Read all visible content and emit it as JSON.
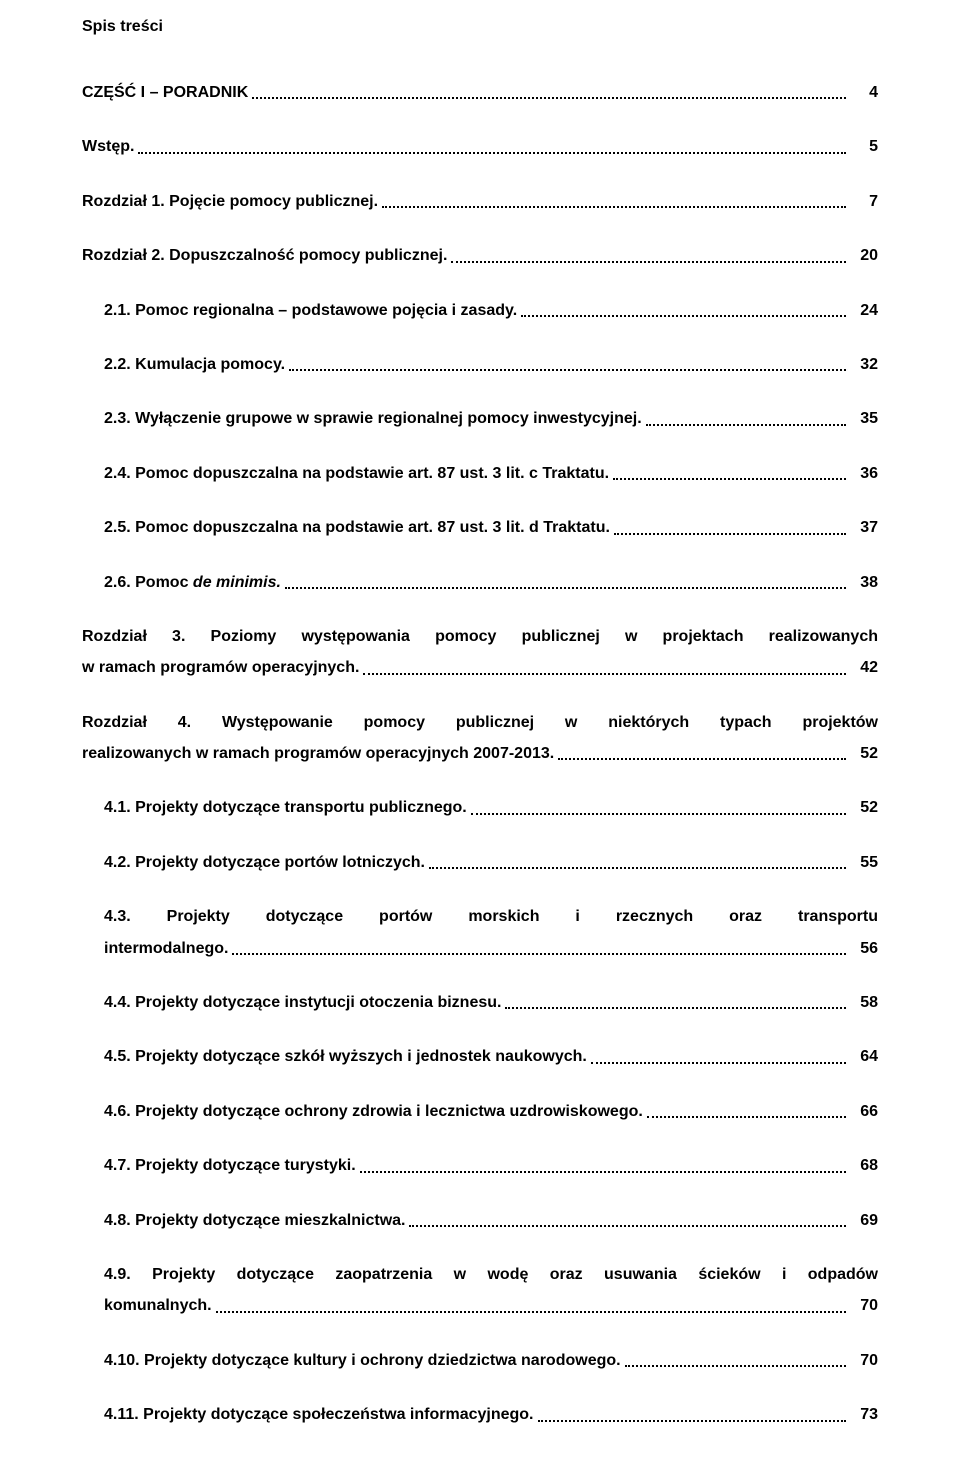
{
  "doc_title": "Spis treści",
  "text_color": "#000000",
  "background_color": "#ffffff",
  "font_family": "Verdana, Geneva, sans-serif",
  "title_fontsize": 16,
  "entry_fontsize": 16,
  "entries": [
    {
      "text": "CZĘŚĆ I – PORADNIK",
      "page": "4",
      "indent": 0
    },
    {
      "text": "Wstęp.",
      "page": "5",
      "indent": 0
    },
    {
      "text": "Rozdział 1. Pojęcie pomocy publicznej.",
      "page": "7",
      "indent": 0
    },
    {
      "text": "Rozdział 2. Dopuszczalność pomocy publicznej.",
      "page": "20",
      "indent": 0
    },
    {
      "text": "2.1. Pomoc regionalna – podstawowe pojęcia i zasady.",
      "page": "24",
      "indent": 1
    },
    {
      "text": "2.2. Kumulacja pomocy.",
      "page": "32",
      "indent": 1
    },
    {
      "text": "2.3. Wyłączenie grupowe w sprawie regionalnej pomocy inwestycyjnej.",
      "page": "35",
      "indent": 1
    },
    {
      "text": "2.4. Pomoc dopuszczalna na podstawie art. 87 ust. 3 lit. c Traktatu.",
      "page": "36",
      "indent": 1
    },
    {
      "text": "2.5. Pomoc dopuszczalna na podstawie art. 87 ust. 3 lit. d Traktatu.",
      "page": "37",
      "indent": 1
    },
    {
      "text_pre": "2.6. Pomoc ",
      "text_italic": "de minimis.",
      "page": "38",
      "indent": 1,
      "has_italic": true
    },
    {
      "multiline": true,
      "line1": "Rozdział 3. Poziomy występowania pomocy publicznej w projektach realizowanych",
      "line2": "w ramach programów operacyjnych.",
      "page": "42",
      "indent": 0
    },
    {
      "multiline": true,
      "line1": "Rozdział 4. Występowanie pomocy publicznej w niektórych typach projektów",
      "line2": "realizowanych w ramach programów operacyjnych 2007-2013.",
      "page": "52",
      "indent": 0
    },
    {
      "text": "4.1. Projekty dotyczące transportu publicznego.",
      "page": "52",
      "indent": 1
    },
    {
      "text": "4.2. Projekty dotyczące portów lotniczych.",
      "page": "55",
      "indent": 1
    },
    {
      "multiline": true,
      "line1": "4.3. Projekty dotyczące portów morskich i rzecznych oraz transportu",
      "line2": "intermodalnego.",
      "page": "56",
      "indent": 1
    },
    {
      "text": "4.4. Projekty dotyczące instytucji otoczenia biznesu.",
      "page": "58",
      "indent": 1
    },
    {
      "text": "4.5. Projekty dotyczące szkół wyższych i jednostek naukowych.",
      "page": "64",
      "indent": 1
    },
    {
      "text": "4.6. Projekty dotyczące ochrony zdrowia i lecznictwa uzdrowiskowego.",
      "page": "66",
      "indent": 1
    },
    {
      "text": "4.7. Projekty dotyczące turystyki.",
      "page": "68",
      "indent": 1
    },
    {
      "text": "4.8. Projekty dotyczące mieszkalnictwa.",
      "page": "69",
      "indent": 1
    },
    {
      "multiline": true,
      "line1": "4.9. Projekty dotyczące zaopatrzenia w wodę oraz usuwania ścieków i odpadów",
      "line2": "komunalnych.",
      "page": "70",
      "indent": 1
    },
    {
      "text": "4.10. Projekty dotyczące kultury i ochrony dziedzictwa narodowego.",
      "page": "70",
      "indent": 1
    },
    {
      "text": "4.11. Projekty dotyczące społeczeństwa informacyjnego.",
      "page": "73",
      "indent": 1
    }
  ]
}
